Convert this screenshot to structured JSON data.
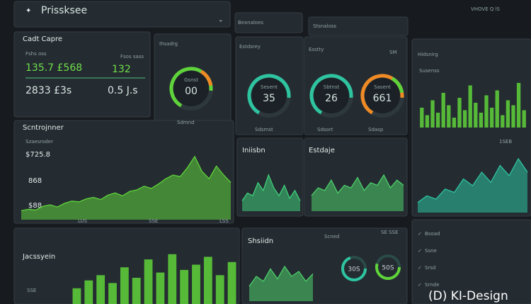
{
  "header": {
    "logo": "Prissksee",
    "tabs": [
      "Bexnaloes",
      "Stsnaloss"
    ],
    "status": "VHOVE Q lS"
  },
  "cash": {
    "title": "Cadt Capre",
    "label1": "Fshs oss",
    "label2": "Fsos sass",
    "row1": [
      "135.7 £568",
      "132"
    ],
    "row2": [
      "2833 £3s",
      "0.5 J.s"
    ]
  },
  "gauges": [
    {
      "title": "Ihsadrg",
      "caption": "Gsnst",
      "value": "00",
      "foot": "Sdmnd"
    },
    {
      "title": "Estdsrey",
      "caption": "Sesent",
      "value": "35",
      "foot": "Sdsmst"
    },
    {
      "title": "Esstty",
      "caption": "Sbtnst",
      "value": "26",
      "foot": "Sdsort"
    },
    {
      "title": "SM",
      "caption": "Sasent",
      "value": "661",
      "foot": "Sdasp"
    }
  ],
  "trend": {
    "title": "Scntrojnner",
    "sub": "Szaesroder",
    "labels": [
      "$725.8",
      "868",
      "$88"
    ],
    "axis": [
      "LUS",
      "SSE",
      "LSS"
    ],
    "chart": {
      "type": "area",
      "color": "#5fd43a",
      "ylim": [
        0,
        100
      ],
      "values": [
        12,
        14,
        13,
        18,
        20,
        17,
        22,
        25,
        24,
        28,
        30,
        27,
        33,
        36,
        32,
        38,
        40,
        45,
        42,
        48,
        55,
        60,
        58,
        70,
        85,
        65,
        55,
        72,
        60,
        50
      ]
    }
  },
  "mid": [
    {
      "title": "Iniisbn",
      "chart": {
        "type": "area",
        "color": "#3fd07a",
        "ylim": [
          0,
          100
        ],
        "values": [
          20,
          35,
          30,
          55,
          40,
          70,
          45,
          30,
          50,
          25,
          40,
          20
        ]
      }
    },
    {
      "title": "Estdaje",
      "chart": {
        "type": "area",
        "color": "#4ccf6a",
        "ylim": [
          0,
          100
        ],
        "values": [
          30,
          45,
          40,
          60,
          35,
          50,
          45,
          65,
          40,
          55,
          50,
          70,
          45,
          60,
          50
        ]
      }
    }
  ],
  "right": {
    "title": "Hidsnirg",
    "sub": "Susenss",
    "value": "1SEB",
    "bars": {
      "type": "bar",
      "color": "#5fd43a",
      "ylim": [
        0,
        100
      ],
      "values": [
        40,
        25,
        55,
        30,
        70,
        45,
        20,
        60,
        35,
        85,
        50,
        30,
        65,
        40,
        75,
        25,
        55,
        45,
        90,
        35
      ]
    },
    "area": {
      "type": "area",
      "color": "#2ec4a0",
      "ylim": [
        0,
        100
      ],
      "values": [
        15,
        25,
        20,
        35,
        30,
        50,
        40,
        60,
        45,
        70,
        55,
        80,
        60
      ]
    },
    "rows": [
      "Bsoad",
      "Ssne",
      "Srsd",
      "Srnde"
    ]
  },
  "bottom": {
    "title": "Jacssyein",
    "label": "SSE",
    "chart": {
      "type": "bar",
      "color": "#5fd43a",
      "ylim": [
        0,
        100
      ],
      "values": [
        30,
        45,
        55,
        40,
        70,
        50,
        85,
        60,
        95,
        65,
        75,
        90,
        55,
        80
      ]
    }
  },
  "center": {
    "title": "Shsiidn",
    "label": "Scned",
    "badge": "SE SSE",
    "gauges": [
      "30S",
      "50S"
    ],
    "chart": {
      "type": "area",
      "color": "#4ccf6a",
      "ylim": [
        0,
        100
      ],
      "values": [
        30,
        50,
        40,
        65,
        45,
        70,
        50,
        60,
        40,
        55
      ]
    }
  },
  "watermark": "(D) KI-Design"
}
